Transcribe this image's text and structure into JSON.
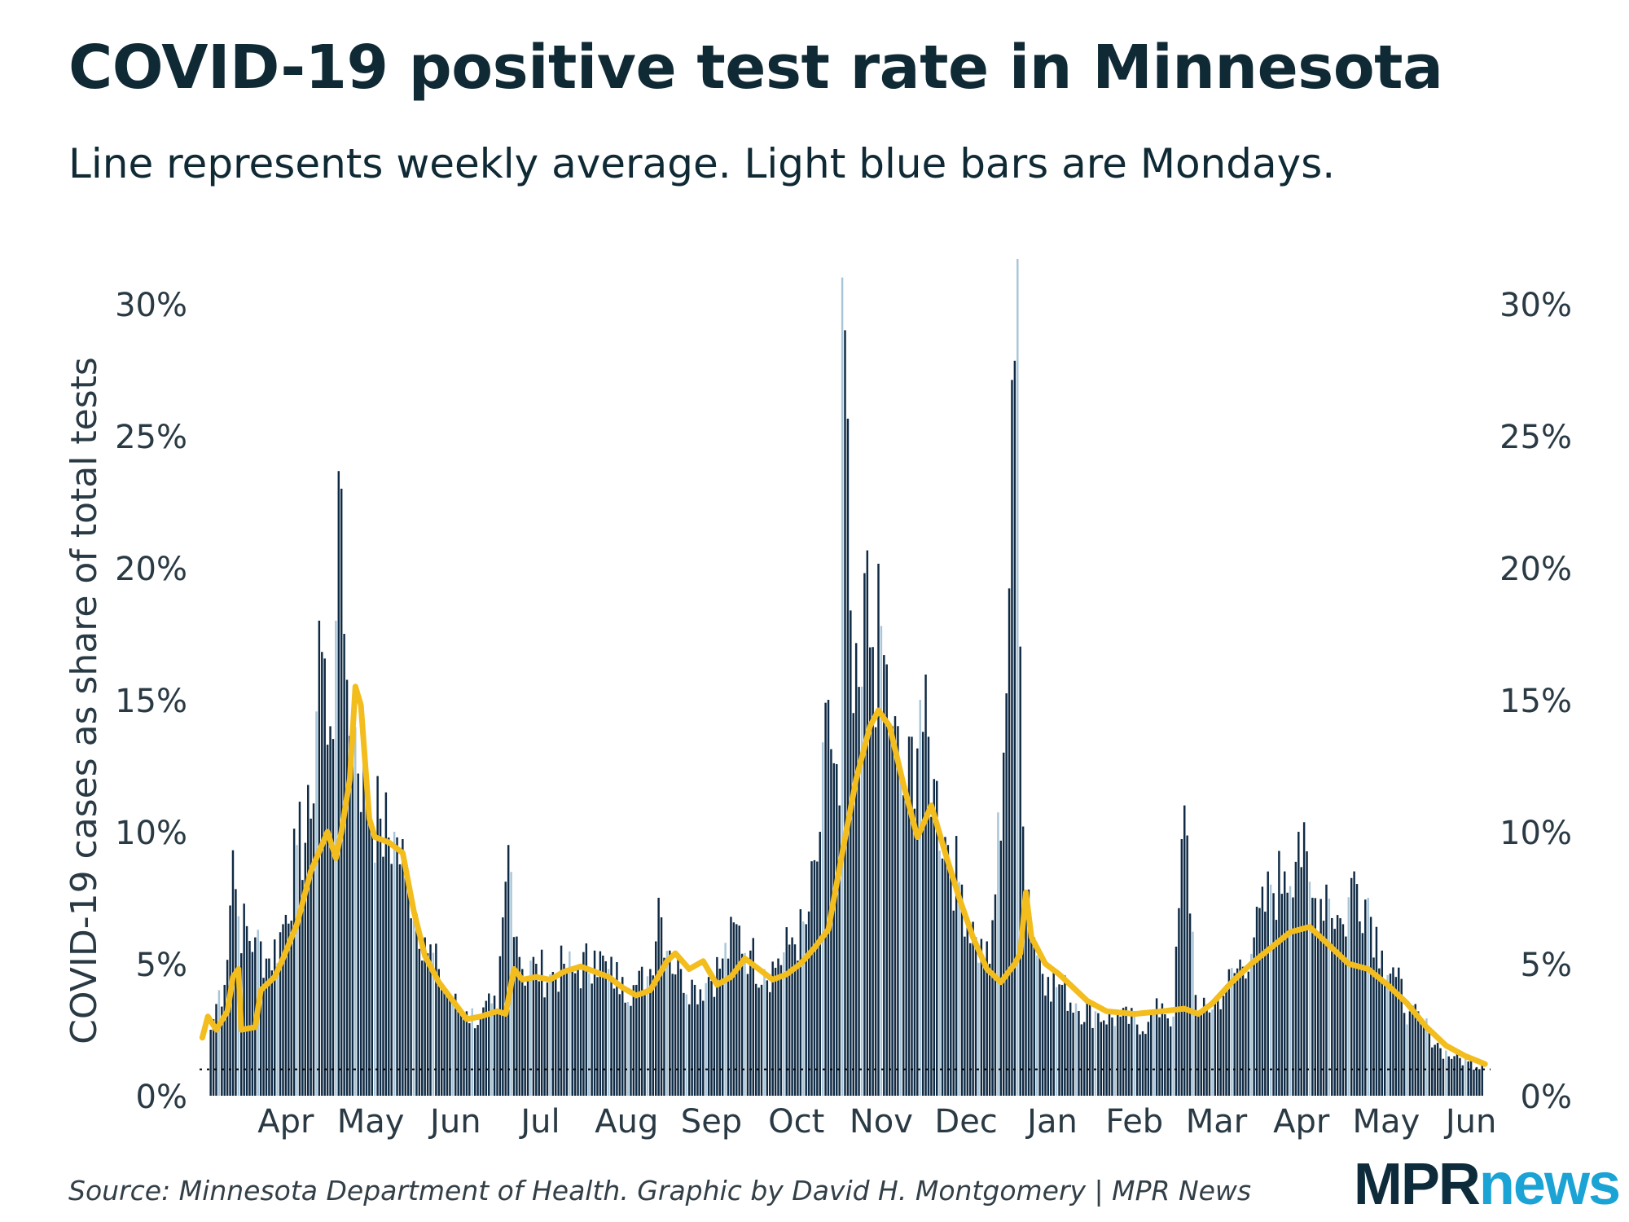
{
  "title": "COVID-19 positive test rate in Minnesota",
  "subtitle": "Line represents weekly average. Light blue bars are Mondays.",
  "source": "Source: Minnesota Department of Health. Graphic by David H. Montgomery | MPR News",
  "logo": {
    "mpr": "MPR",
    "news": "news"
  },
  "colors": {
    "bar": "#0f2a44",
    "monday_bar": "#a9c6d9",
    "line": "#f2bd1d",
    "reference_line": "#000000"
  },
  "chart_data": {
    "type": "bar",
    "ylabel": "COVID-19 cases as share of total tests",
    "y_ticks": [
      "0%",
      "5%",
      "10%",
      "15%",
      "20%",
      "25%",
      "30%"
    ],
    "y_tick_values": [
      0,
      5,
      10,
      15,
      20,
      25,
      30
    ],
    "ylim": [
      0,
      31.7
    ],
    "y_axis_both_sides": true,
    "x_months": [
      {
        "label": "Apr",
        "date": "2020-04-01"
      },
      {
        "label": "May",
        "date": "2020-05-01"
      },
      {
        "label": "Jun",
        "date": "2020-06-01"
      },
      {
        "label": "Jul",
        "date": "2020-07-01"
      },
      {
        "label": "Aug",
        "date": "2020-08-01"
      },
      {
        "label": "Sep",
        "date": "2020-09-01"
      },
      {
        "label": "Oct",
        "date": "2020-10-01"
      },
      {
        "label": "Nov",
        "date": "2020-11-01"
      },
      {
        "label": "Dec",
        "date": "2020-12-01"
      },
      {
        "label": "Jan",
        "date": "2021-01-01"
      },
      {
        "label": "Feb",
        "date": "2021-02-01"
      },
      {
        "label": "Mar",
        "date": "2021-03-01"
      },
      {
        "label": "Apr",
        "date": "2021-04-01"
      },
      {
        "label": "May",
        "date": "2021-05-01"
      },
      {
        "label": "Jun",
        "date": "2021-06-01"
      }
    ],
    "reference_line_value": 1,
    "series": [
      {
        "kind": "bars",
        "note": "daily positive rate; Mondays drawn in light blue",
        "points": [
          [
            "2020-03-20",
            2.5
          ],
          [
            "2020-03-23",
            4.0
          ],
          [
            "2020-03-25",
            4.2
          ],
          [
            "2020-03-28",
            9.3
          ],
          [
            "2020-03-30",
            6.8
          ],
          [
            "2020-04-05",
            6.0
          ],
          [
            "2020-04-10",
            5.2
          ],
          [
            "2020-04-15",
            6.5
          ],
          [
            "2020-04-20",
            9.5
          ],
          [
            "2020-04-25",
            10.5
          ],
          [
            "2020-04-28",
            18.0
          ],
          [
            "2020-05-02",
            14.0
          ],
          [
            "2020-05-04",
            18.0
          ],
          [
            "2020-05-06",
            23.0
          ],
          [
            "2020-05-07",
            17.5
          ],
          [
            "2020-05-10",
            14.8
          ],
          [
            "2020-05-15",
            11.5
          ],
          [
            "2020-05-20",
            10.5
          ],
          [
            "2020-05-25",
            10.0
          ],
          [
            "2020-05-30",
            8.5
          ],
          [
            "2020-06-05",
            6.0
          ],
          [
            "2020-06-10",
            4.8
          ],
          [
            "2020-06-15",
            3.6
          ],
          [
            "2020-06-20",
            3.2
          ],
          [
            "2020-06-25",
            3.0
          ],
          [
            "2020-06-29",
            3.5
          ],
          [
            "2020-07-01",
            3.2
          ],
          [
            "2020-07-05",
            9.5
          ],
          [
            "2020-07-10",
            4.8
          ],
          [
            "2020-07-15",
            5.0
          ],
          [
            "2020-07-20",
            4.6
          ],
          [
            "2020-07-25",
            5.0
          ],
          [
            "2020-07-30",
            4.8
          ],
          [
            "2020-08-05",
            5.5
          ],
          [
            "2020-08-10",
            4.8
          ],
          [
            "2020-08-15",
            4.5
          ],
          [
            "2020-08-20",
            4.2
          ],
          [
            "2020-08-25",
            4.8
          ],
          [
            "2020-08-28",
            7.5
          ],
          [
            "2020-09-01",
            5.5
          ],
          [
            "2020-09-05",
            4.8
          ],
          [
            "2020-09-10",
            4.2
          ],
          [
            "2020-09-15",
            4.5
          ],
          [
            "2020-09-20",
            5.2
          ],
          [
            "2020-09-25",
            6.5
          ],
          [
            "2020-09-30",
            5.5
          ],
          [
            "2020-10-05",
            4.8
          ],
          [
            "2020-10-10",
            5.2
          ],
          [
            "2020-10-15",
            6.0
          ],
          [
            "2020-10-20",
            6.5
          ],
          [
            "2020-10-25",
            10.0
          ],
          [
            "2020-10-28",
            15.0
          ],
          [
            "2020-11-01",
            11.0
          ],
          [
            "2020-11-02",
            31.0
          ],
          [
            "2020-11-06",
            14.5
          ],
          [
            "2020-11-09",
            15.5
          ],
          [
            "2020-11-10",
            19.8
          ],
          [
            "2020-11-13",
            17.0
          ],
          [
            "2020-11-16",
            17.8
          ],
          [
            "2020-11-20",
            14.0
          ],
          [
            "2020-11-25",
            11.5
          ],
          [
            "2020-11-30",
            15.0
          ],
          [
            "2020-12-05",
            12.0
          ],
          [
            "2020-12-10",
            9.5
          ],
          [
            "2020-12-15",
            8.0
          ],
          [
            "2020-12-20",
            6.0
          ],
          [
            "2020-12-25",
            5.0
          ],
          [
            "2020-12-30",
            13.0
          ],
          [
            "2021-01-04",
            31.7
          ],
          [
            "2021-01-06",
            10.2
          ],
          [
            "2021-01-10",
            6.0
          ],
          [
            "2021-01-15",
            4.5
          ],
          [
            "2021-01-20",
            4.2
          ],
          [
            "2021-01-25",
            3.5
          ],
          [
            "2021-02-01",
            3.2
          ],
          [
            "2021-02-10",
            3.0
          ],
          [
            "2021-02-20",
            2.8
          ],
          [
            "2021-02-25",
            3.5
          ],
          [
            "2021-03-01",
            3.0
          ],
          [
            "2021-03-05",
            11.0
          ],
          [
            "2021-03-10",
            3.0
          ],
          [
            "2021-03-20",
            4.2
          ],
          [
            "2021-03-30",
            6.0
          ],
          [
            "2021-04-05",
            8.0
          ],
          [
            "2021-04-10",
            8.5
          ],
          [
            "2021-04-15",
            10.0
          ],
          [
            "2021-04-20",
            7.5
          ],
          [
            "2021-04-25",
            8.0
          ],
          [
            "2021-05-01",
            6.5
          ],
          [
            "2021-05-05",
            8.5
          ],
          [
            "2021-05-10",
            7.5
          ],
          [
            "2021-05-15",
            5.5
          ],
          [
            "2021-05-20",
            4.5
          ],
          [
            "2021-05-25",
            3.2
          ],
          [
            "2021-06-01",
            2.5
          ],
          [
            "2021-06-05",
            1.8
          ],
          [
            "2021-06-10",
            1.5
          ],
          [
            "2021-06-15",
            1.3
          ],
          [
            "2021-06-20",
            1.2
          ]
        ]
      },
      {
        "kind": "line",
        "note": "weekly average",
        "points": [
          [
            "2020-03-17",
            2.2
          ],
          [
            "2020-03-19",
            3.0
          ],
          [
            "2020-03-22",
            2.5
          ],
          [
            "2020-03-26",
            3.2
          ],
          [
            "2020-03-28",
            4.5
          ],
          [
            "2020-03-30",
            4.8
          ],
          [
            "2020-03-31",
            2.5
          ],
          [
            "2020-04-05",
            2.6
          ],
          [
            "2020-04-07",
            4.0
          ],
          [
            "2020-04-12",
            4.5
          ],
          [
            "2020-04-15",
            5.2
          ],
          [
            "2020-04-20",
            6.5
          ],
          [
            "2020-04-25",
            8.5
          ],
          [
            "2020-04-29",
            9.5
          ],
          [
            "2020-05-01",
            10.0
          ],
          [
            "2020-05-04",
            9.0
          ],
          [
            "2020-05-06",
            10.0
          ],
          [
            "2020-05-09",
            12.0
          ],
          [
            "2020-05-11",
            15.5
          ],
          [
            "2020-05-13",
            14.8
          ],
          [
            "2020-05-16",
            10.5
          ],
          [
            "2020-05-18",
            9.8
          ],
          [
            "2020-05-23",
            9.6
          ],
          [
            "2020-05-28",
            9.2
          ],
          [
            "2020-06-01",
            7.0
          ],
          [
            "2020-06-05",
            5.3
          ],
          [
            "2020-06-10",
            4.3
          ],
          [
            "2020-06-15",
            3.6
          ],
          [
            "2020-06-20",
            2.9
          ],
          [
            "2020-06-25",
            3.0
          ],
          [
            "2020-07-01",
            3.2
          ],
          [
            "2020-07-04",
            3.1
          ],
          [
            "2020-07-07",
            4.8
          ],
          [
            "2020-07-10",
            4.4
          ],
          [
            "2020-07-15",
            4.5
          ],
          [
            "2020-07-20",
            4.4
          ],
          [
            "2020-07-25",
            4.7
          ],
          [
            "2020-07-31",
            4.9
          ],
          [
            "2020-08-05",
            4.7
          ],
          [
            "2020-08-10",
            4.5
          ],
          [
            "2020-08-15",
            4.1
          ],
          [
            "2020-08-20",
            3.8
          ],
          [
            "2020-08-25",
            4.0
          ],
          [
            "2020-08-31",
            5.1
          ],
          [
            "2020-09-03",
            5.4
          ],
          [
            "2020-09-08",
            4.8
          ],
          [
            "2020-09-13",
            5.1
          ],
          [
            "2020-09-18",
            4.2
          ],
          [
            "2020-09-23",
            4.5
          ],
          [
            "2020-09-28",
            5.2
          ],
          [
            "2020-10-03",
            4.8
          ],
          [
            "2020-10-08",
            4.4
          ],
          [
            "2020-10-13",
            4.6
          ],
          [
            "2020-10-18",
            5.0
          ],
          [
            "2020-10-23",
            5.6
          ],
          [
            "2020-10-28",
            6.3
          ],
          [
            "2020-11-02",
            9.2
          ],
          [
            "2020-11-07",
            12.0
          ],
          [
            "2020-11-12",
            14.0
          ],
          [
            "2020-11-15",
            14.6
          ],
          [
            "2020-11-19",
            14.0
          ],
          [
            "2020-11-24",
            11.8
          ],
          [
            "2020-11-29",
            9.8
          ],
          [
            "2020-12-02",
            10.5
          ],
          [
            "2020-12-04",
            11.0
          ],
          [
            "2020-12-09",
            9.2
          ],
          [
            "2020-12-14",
            7.5
          ],
          [
            "2020-12-19",
            6.0
          ],
          [
            "2020-12-24",
            4.8
          ],
          [
            "2020-12-29",
            4.3
          ],
          [
            "2021-01-03",
            5.0
          ],
          [
            "2021-01-05",
            5.4
          ],
          [
            "2021-01-07",
            7.7
          ],
          [
            "2021-01-09",
            6.0
          ],
          [
            "2021-01-14",
            5.0
          ],
          [
            "2021-01-19",
            4.6
          ],
          [
            "2021-01-24",
            4.1
          ],
          [
            "2021-01-29",
            3.6
          ],
          [
            "2021-02-05",
            3.2
          ],
          [
            "2021-02-15",
            3.1
          ],
          [
            "2021-02-25",
            3.2
          ],
          [
            "2021-03-05",
            3.3
          ],
          [
            "2021-03-10",
            3.1
          ],
          [
            "2021-03-15",
            3.5
          ],
          [
            "2021-03-22",
            4.3
          ],
          [
            "2021-03-29",
            5.0
          ],
          [
            "2021-04-05",
            5.6
          ],
          [
            "2021-04-12",
            6.2
          ],
          [
            "2021-04-19",
            6.4
          ],
          [
            "2021-04-26",
            5.7
          ],
          [
            "2021-05-03",
            5.0
          ],
          [
            "2021-05-10",
            4.8
          ],
          [
            "2021-05-17",
            4.2
          ],
          [
            "2021-05-24",
            3.5
          ],
          [
            "2021-05-31",
            2.6
          ],
          [
            "2021-06-07",
            1.9
          ],
          [
            "2021-06-14",
            1.5
          ],
          [
            "2021-06-21",
            1.2
          ]
        ]
      }
    ],
    "x_domain": [
      "2020-03-16",
      "2021-06-23"
    ]
  }
}
